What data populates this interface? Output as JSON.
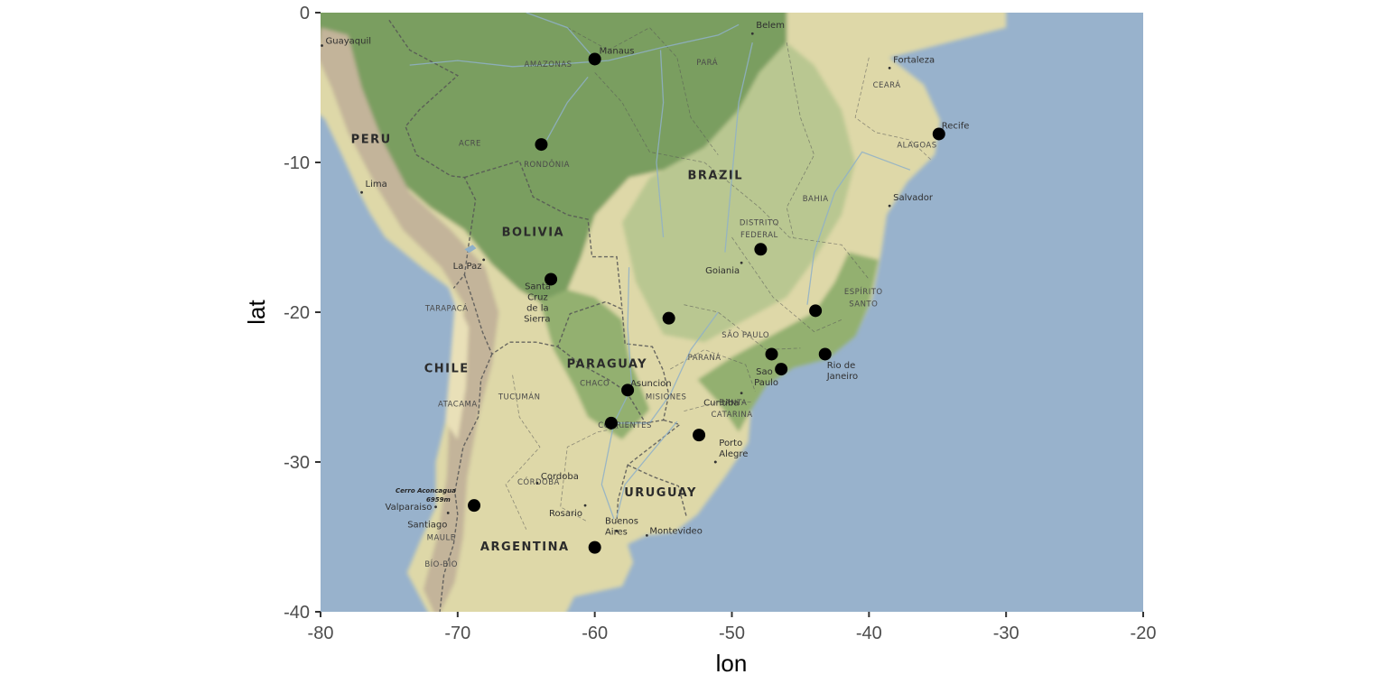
{
  "chart_data": {
    "type": "scatter",
    "title": "",
    "xlabel": "lon",
    "ylabel": "lat",
    "xlim": [
      -80,
      -20
    ],
    "ylim": [
      -40,
      0
    ],
    "x_ticks": [
      -80,
      -70,
      -60,
      -50,
      -40,
      -30,
      -20
    ],
    "y_ticks": [
      0,
      -10,
      -20,
      -30,
      -40
    ],
    "x_tick_labels": [
      "-80",
      "-70",
      "-60",
      "-50",
      "-40",
      "-30",
      "-20"
    ],
    "y_tick_labels": [
      "0",
      "-10",
      "-20",
      "-30",
      "-40"
    ],
    "grid": false,
    "legend": "none",
    "point_color": "#000000",
    "points": [
      {
        "x": -60.0,
        "y": -3.1
      },
      {
        "x": -63.9,
        "y": -8.8
      },
      {
        "x": -34.9,
        "y": -8.1
      },
      {
        "x": -47.9,
        "y": -15.8
      },
      {
        "x": -63.2,
        "y": -17.8
      },
      {
        "x": -43.9,
        "y": -19.9
      },
      {
        "x": -54.6,
        "y": -20.4
      },
      {
        "x": -47.1,
        "y": -22.8
      },
      {
        "x": -43.2,
        "y": -22.8
      },
      {
        "x": -46.4,
        "y": -23.8
      },
      {
        "x": -57.6,
        "y": -25.2
      },
      {
        "x": -58.8,
        "y": -27.4
      },
      {
        "x": -52.4,
        "y": -28.2
      },
      {
        "x": -68.8,
        "y": -32.9
      },
      {
        "x": -60.0,
        "y": -35.7
      }
    ]
  },
  "basemap": {
    "colors": {
      "ocean": "#98b2cc",
      "forest": "#7a9e60",
      "forest_light": "#93b070",
      "grassland": "#b9c791",
      "dry": "#ded8a8",
      "desert": "#e9e0b8",
      "mountain": "#c3b49a",
      "border": "#555555"
    },
    "countries": [
      {
        "name": "PERU",
        "lon": -76.3,
        "lat": -8.7
      },
      {
        "name": "BRAZIL",
        "lon": -51.2,
        "lat": -11.1
      },
      {
        "name": "BOLIVIA",
        "lon": -64.5,
        "lat": -14.9
      },
      {
        "name": "CHILE",
        "lon": -70.8,
        "lat": -24.0
      },
      {
        "name": "PARAGUAY",
        "lon": -59.1,
        "lat": -23.7
      },
      {
        "name": "URUGUAY",
        "lon": -55.2,
        "lat": -32.3
      },
      {
        "name": "ARGENTINA",
        "lon": -65.1,
        "lat": -35.9
      }
    ],
    "regions": [
      {
        "name": "AMAZONAS",
        "lon": -63.4,
        "lat": -3.6
      },
      {
        "name": "PARÁ",
        "lon": -51.8,
        "lat": -3.5
      },
      {
        "name": "ACRE",
        "lon": -69.1,
        "lat": -8.9
      },
      {
        "name": "RONDÔNIA",
        "lon": -63.5,
        "lat": -10.3
      },
      {
        "name": "CEARÁ",
        "lon": -38.7,
        "lat": -5.0
      },
      {
        "name": "ALAGOAS",
        "lon": -36.5,
        "lat": -9.0
      },
      {
        "name": "BAHIA",
        "lon": -43.9,
        "lat": -12.6
      },
      {
        "name": "DISTRITO",
        "lon": -48.0,
        "lat": -14.2
      },
      {
        "name": "FEDERAL",
        "lon": -48.0,
        "lat": -15.0
      },
      {
        "name": "ESPÍRITO",
        "lon": -40.4,
        "lat": -18.8
      },
      {
        "name": "SANTO",
        "lon": -40.4,
        "lat": -19.6
      },
      {
        "name": "TARAPACÁ",
        "lon": -70.8,
        "lat": -19.9
      },
      {
        "name": "SÃO PAULO",
        "lon": -49.0,
        "lat": -21.7
      },
      {
        "name": "PARANÁ",
        "lon": -52.0,
        "lat": -23.2
      },
      {
        "name": "CHACO",
        "lon": -60.0,
        "lat": -24.9
      },
      {
        "name": "MISIONES",
        "lon": -54.8,
        "lat": -25.8
      },
      {
        "name": "TUCUMÁN",
        "lon": -65.5,
        "lat": -25.8
      },
      {
        "name": "ATACAMA",
        "lon": -70.0,
        "lat": -26.3
      },
      {
        "name": "SANTA",
        "lon": -49.9,
        "lat": -26.2
      },
      {
        "name": "CATARINA",
        "lon": -50.0,
        "lat": -27.0
      },
      {
        "name": "CORRIENTES",
        "lon": -57.8,
        "lat": -27.7
      },
      {
        "name": "CÓRDOBA",
        "lon": -64.1,
        "lat": -31.5
      },
      {
        "name": "MAULE",
        "lon": -71.2,
        "lat": -35.2
      },
      {
        "name": "BÍO-BÍO",
        "lon": -71.2,
        "lat": -37.0
      }
    ],
    "cities": [
      {
        "name": "Guayaquil",
        "lon": -79.9,
        "lat": -2.2,
        "dx": 4,
        "dy": -2
      },
      {
        "name": "Manaus",
        "lon": -60.0,
        "lat": -3.1,
        "dx": 5,
        "dy": -6
      },
      {
        "name": "Belem",
        "lon": -48.5,
        "lat": -1.4,
        "dx": 4,
        "dy": -6
      },
      {
        "name": "Fortaleza",
        "lon": -38.5,
        "lat": -3.7,
        "dx": 4,
        "dy": -6
      },
      {
        "name": "Recife",
        "lon": -34.9,
        "lat": -8.1,
        "dx": 3,
        "dy": -6
      },
      {
        "name": "Lima",
        "lon": -77.0,
        "lat": -12.0,
        "dx": 4,
        "dy": -6
      },
      {
        "name": "Salvador",
        "lon": -38.5,
        "lat": -12.9,
        "dx": 4,
        "dy": -6
      },
      {
        "name": "Goiania",
        "lon": -49.3,
        "lat": -16.7,
        "dx": -40,
        "dy": 12
      },
      {
        "name": "La Paz",
        "lon": -68.1,
        "lat": -16.5,
        "dx": -34,
        "dy": 10
      },
      {
        "name": "Santa",
        "lon": -63.2,
        "lat": -17.8,
        "dx": -29,
        "dy": 11
      },
      {
        "name": "Cruz",
        "lon": -63.2,
        "lat": -17.8,
        "dx": -26,
        "dy": 23
      },
      {
        "name": "de la",
        "lon": -63.2,
        "lat": -17.8,
        "dx": -27,
        "dy": 35
      },
      {
        "name": "Sierra",
        "lon": -63.2,
        "lat": -17.8,
        "dx": -30,
        "dy": 47
      },
      {
        "name": "Asuncion",
        "lon": -57.6,
        "lat": -25.3,
        "dx": 3,
        "dy": -6
      },
      {
        "name": "Curitiba",
        "lon": -49.3,
        "lat": -25.4,
        "dx": -42,
        "dy": 14
      },
      {
        "name": "Sao",
        "lon": -46.6,
        "lat": -23.5,
        "dx": -25,
        "dy": 11
      },
      {
        "name": "Paulo",
        "lon": -46.6,
        "lat": -23.5,
        "dx": -27,
        "dy": 23
      },
      {
        "name": "Rio de",
        "lon": -43.2,
        "lat": -22.9,
        "dx": 2,
        "dy": 14
      },
      {
        "name": "Janeiro",
        "lon": -43.2,
        "lat": -22.9,
        "dx": 2,
        "dy": 26
      },
      {
        "name": "Porto",
        "lon": -51.2,
        "lat": -30.0,
        "dx": 4,
        "dy": -18
      },
      {
        "name": "Alegre",
        "lon": -51.2,
        "lat": -30.0,
        "dx": 4,
        "dy": -6
      },
      {
        "name": "Cordoba",
        "lon": -64.2,
        "lat": -31.4,
        "dx": 4,
        "dy": -4
      },
      {
        "name": "Valparaiso",
        "lon": -71.6,
        "lat": -33.0,
        "dx": -56,
        "dy": 3
      },
      {
        "name": "Santiago",
        "lon": -70.7,
        "lat": -33.4,
        "dx": -45,
        "dy": 16
      },
      {
        "name": "Rosario",
        "lon": -60.7,
        "lat": -32.9,
        "dx": -40,
        "dy": 12
      },
      {
        "name": "Montevideo",
        "lon": -56.2,
        "lat": -34.9,
        "dx": 3,
        "dy": -2
      },
      {
        "name": "Buenos",
        "lon": -58.4,
        "lat": -34.6,
        "dx": -13,
        "dy": -8
      },
      {
        "name": "Aires",
        "lon": -58.4,
        "lat": -34.6,
        "dx": -13,
        "dy": 4
      }
    ],
    "peak": {
      "name": "Cerro Aconcagua",
      "elevation": "6959m",
      "lon": -70.0,
      "lat": -32.6
    }
  }
}
